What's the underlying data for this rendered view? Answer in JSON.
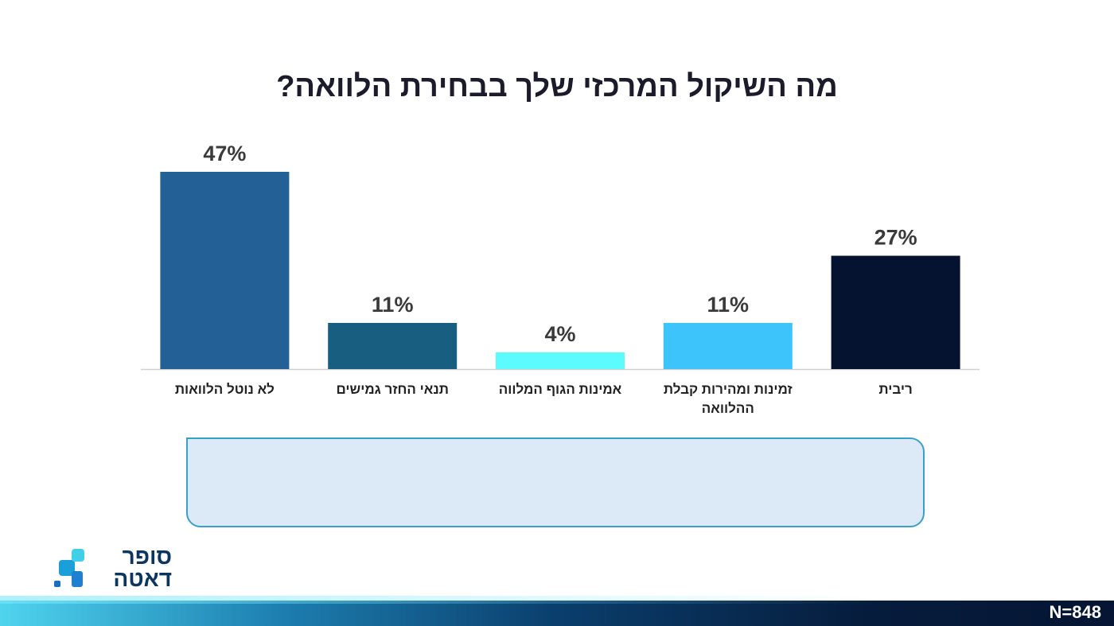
{
  "chart_data": {
    "type": "bar",
    "title": "מה השיקול המרכזי שלך בבחירת הלוואה?",
    "categories": [
      "לא נוטל הלוואות",
      "תנאי החזר גמישים",
      "אמינות הגוף המלווה",
      "זמינות ומהירות קבלת ההלוואה",
      "ריבית"
    ],
    "values": [
      47,
      11,
      4,
      11,
      27
    ],
    "value_labels": [
      "47%",
      "11%",
      "4%",
      "11%",
      "27%"
    ],
    "colors": [
      "#236096",
      "#175e81",
      "#5cfbfd",
      "#3dc4fb",
      "#051330"
    ]
  },
  "footer": {
    "sample": "N=848",
    "logo": [
      "סופר",
      "דאטה"
    ]
  }
}
